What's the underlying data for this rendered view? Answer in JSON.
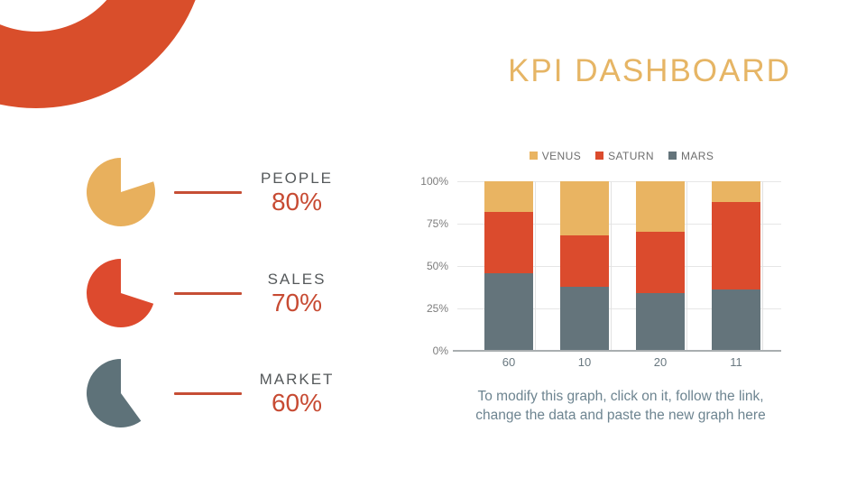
{
  "title": "KPI DASHBOARD",
  "kpis": [
    {
      "label": "PEOPLE",
      "value": "80%",
      "pct": 80,
      "color": "#E8B05D"
    },
    {
      "label": "SALES",
      "value": "70%",
      "pct": 70,
      "color": "#DD4A2E"
    },
    {
      "label": "MARKET",
      "value": "60%",
      "pct": 60,
      "color": "#5E7279"
    }
  ],
  "chart_data": {
    "type": "bar",
    "subtype": "stacked-100",
    "categories": [
      "60",
      "10",
      "20",
      "11"
    ],
    "series": [
      {
        "name": "VENUS",
        "color": "#E9B462",
        "values": [
          18,
          32,
          30,
          12
        ]
      },
      {
        "name": "SATURN",
        "color": "#DB4B2D",
        "values": [
          36,
          30,
          36,
          52
        ]
      },
      {
        "name": "MARS",
        "color": "#64747B",
        "values": [
          46,
          38,
          34,
          36
        ]
      }
    ],
    "stack_order_top_to_bottom": [
      "VENUS",
      "SATURN",
      "MARS"
    ],
    "y_ticks": [
      "100%",
      "75%",
      "50%",
      "25%",
      "0%"
    ],
    "ylim": [
      0,
      100
    ],
    "legend_position": "top",
    "grid": true
  },
  "footer": {
    "line1": "To modify this graph, click on it, follow the link,",
    "line2": "change the data and paste the new graph here"
  },
  "colors": {
    "accent_red": "#D94E2B",
    "title_gold": "#E6B565",
    "kpi_label_gray": "#55595B",
    "kpi_value_red": "#C74A32",
    "connector_red": "#C64E35",
    "grid_gray": "#E6E6E6",
    "axis_gray": "#A9AEB0",
    "tick_text_gray": "#7C7C7C",
    "x_label_gray": "#697880",
    "legend_text_gray": "#6E6E6E",
    "footer_text_gray": "#6D8490"
  }
}
